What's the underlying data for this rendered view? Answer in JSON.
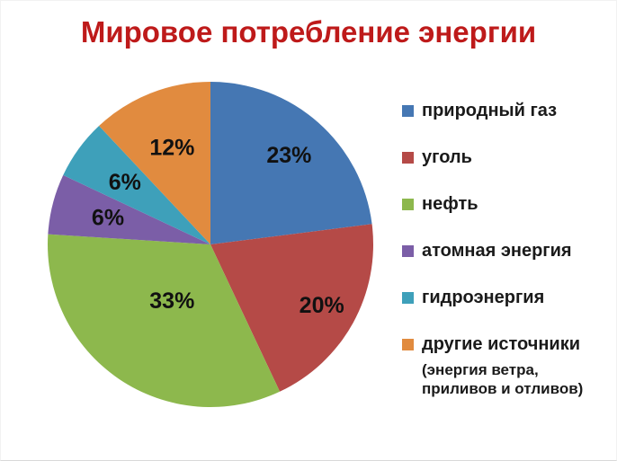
{
  "chart_data": {
    "type": "pie",
    "title": "Мировое потребление энергии",
    "title_color": "#be1a1a",
    "start_angle_deg": 0,
    "direction": "clockwise",
    "legend_position": "right",
    "value_suffix": "%",
    "slices": [
      {
        "id": "natural-gas",
        "label": "природный газ",
        "value": 23,
        "color": "#4577b3",
        "label_radius": 0.73
      },
      {
        "id": "coal",
        "label": "уголь",
        "value": 20,
        "color": "#b54a47",
        "label_radius": 0.78
      },
      {
        "id": "oil",
        "label": "нефть",
        "value": 33,
        "color": "#8db84d",
        "label_radius": 0.42
      },
      {
        "id": "nuclear",
        "label": "атомная энергия",
        "value": 6,
        "color": "#7b5ea7",
        "label_radius": 0.65
      },
      {
        "id": "hydro",
        "label": "гидроэнергия",
        "value": 6,
        "color": "#3ea0ba",
        "label_radius": 0.65
      },
      {
        "id": "other",
        "label": "другие источники",
        "value": 12,
        "color": "#e18b3f",
        "label_radius": 0.64,
        "sublabel_lines": [
          "(энергия ветра,",
          "приливов и отливов)"
        ]
      }
    ]
  }
}
